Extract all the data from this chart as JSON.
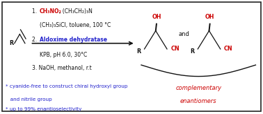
{
  "bg_color": "#ffffff",
  "border_color": "#222222",
  "black": "#111111",
  "red": "#cc0000",
  "blue": "#2222cc",
  "step1_number": "1. ",
  "step1_red": "CH₃NO₂",
  "step1_black": ", (CH₃CH₂)₃N",
  "step1b_black": "(CH₃)₃SiCl, toluene, 100 °C",
  "step2_number": "2. ",
  "step2_blue": "Aldoxime dehydratase",
  "step2b_black": "KPB, pH 6.0, 30°C",
  "step3_black": "3. NaOH, methanol, r.t",
  "bullet1": "* cyanide-free to construct chiral hydroxyl group",
  "bullet1b": "   and nitrile group",
  "bullet2": "* up to 99% enantioselectivity",
  "comp1": "complementary",
  "comp2": "enantiomers",
  "and_text": "and"
}
